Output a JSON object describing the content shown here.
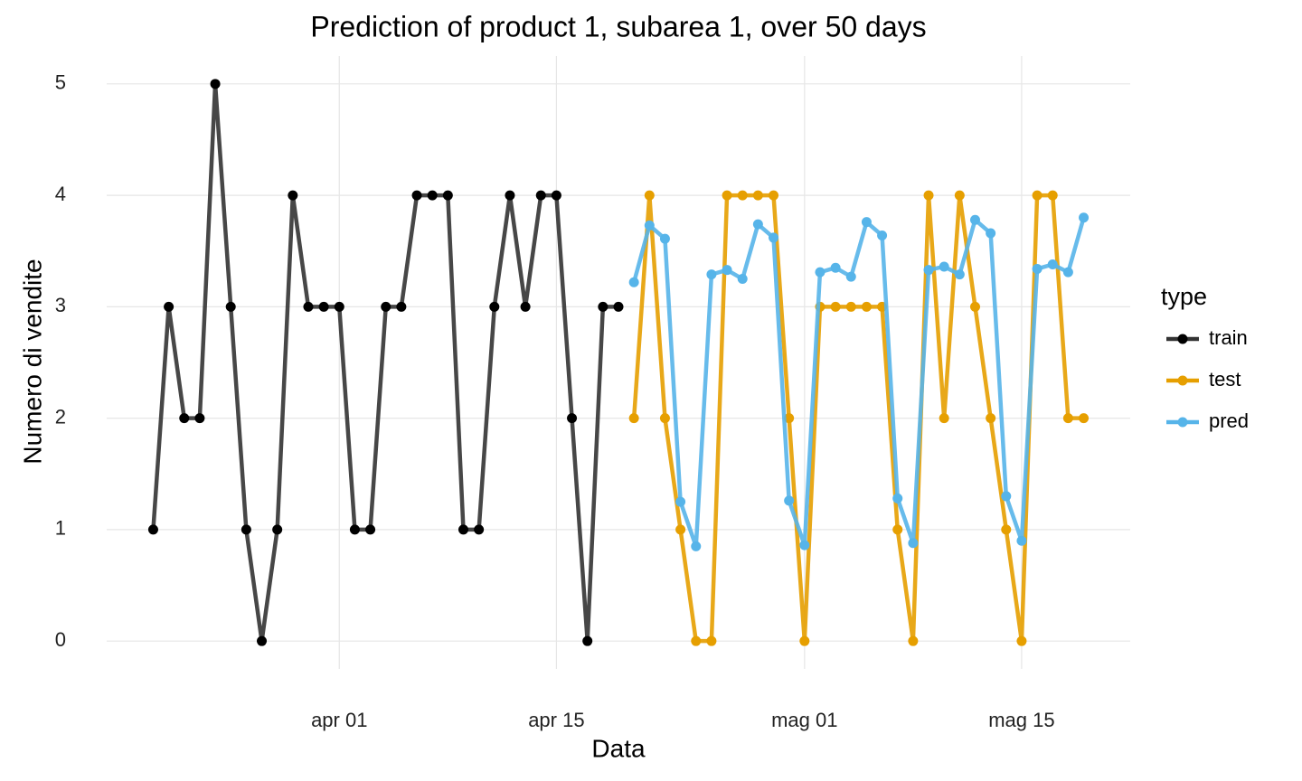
{
  "chart_data": {
    "type": "line",
    "title": "Prediction of product 1, subarea 1, over 50 days",
    "x_label": "Data",
    "y_label": "Numero di vendite",
    "legend_title": "type",
    "legend": "right",
    "grid": true,
    "xlim": [
      "03-17",
      "05-22"
    ],
    "xticks": [
      {
        "value": "04-01",
        "label": "apr 01"
      },
      {
        "value": "04-15",
        "label": "apr 15"
      },
      {
        "value": "05-01",
        "label": "mag 01"
      },
      {
        "value": "05-15",
        "label": "mag 15"
      }
    ],
    "ylim": [
      -0.25,
      5.25
    ],
    "yticks": [
      0,
      1,
      2,
      3,
      4,
      5
    ],
    "series": [
      {
        "name": "train",
        "color": "#333333",
        "x": [
          "03-20",
          "03-21",
          "03-22",
          "03-23",
          "03-24",
          "03-25",
          "03-26",
          "03-27",
          "03-28",
          "03-29",
          "03-30",
          "03-31",
          "04-01",
          "04-02",
          "04-03",
          "04-04",
          "04-05",
          "04-06",
          "04-07",
          "04-08",
          "04-09",
          "04-10",
          "04-11",
          "04-12",
          "04-13",
          "04-14",
          "04-15",
          "04-16",
          "04-17",
          "04-18",
          "04-19"
        ],
        "values": [
          1,
          3,
          2,
          2,
          5,
          3,
          1,
          0,
          1,
          4,
          3,
          3,
          3,
          1,
          1,
          3,
          3,
          4,
          4,
          4,
          1,
          1,
          3,
          4,
          3,
          4,
          4,
          2,
          0,
          3,
          3
        ]
      },
      {
        "name": "test",
        "color": "#E69F00",
        "x": [
          "04-20",
          "04-21",
          "04-22",
          "04-23",
          "04-24",
          "04-25",
          "04-26",
          "04-27",
          "04-28",
          "04-29",
          "04-30",
          "05-01",
          "05-02",
          "05-03",
          "05-04",
          "05-05",
          "05-06",
          "05-07",
          "05-08",
          "05-09",
          "05-10",
          "05-11",
          "05-12",
          "05-13",
          "05-14",
          "05-15",
          "05-16",
          "05-17",
          "05-18",
          "05-19"
        ],
        "values": [
          2,
          4,
          2,
          1,
          0,
          0,
          4,
          4,
          4,
          4,
          2,
          0,
          3,
          3,
          3,
          3,
          3,
          1,
          0,
          4,
          2,
          4,
          3,
          2,
          1,
          0,
          4,
          4,
          2,
          2
        ]
      },
      {
        "name": "pred",
        "color": "#56B4E9",
        "x": [
          "04-20",
          "04-21",
          "04-22",
          "04-23",
          "04-24",
          "04-25",
          "04-26",
          "04-27",
          "04-28",
          "04-29",
          "04-30",
          "05-01",
          "05-02",
          "05-03",
          "05-04",
          "05-05",
          "05-06",
          "05-07",
          "05-08",
          "05-09",
          "05-10",
          "05-11",
          "05-12",
          "05-13",
          "05-14",
          "05-15",
          "05-16",
          "05-17",
          "05-18",
          "05-19"
        ],
        "values": [
          3.22,
          3.73,
          3.61,
          1.25,
          0.85,
          3.29,
          3.33,
          3.25,
          3.74,
          3.62,
          1.26,
          0.86,
          3.31,
          3.35,
          3.27,
          3.76,
          3.64,
          1.28,
          0.88,
          3.33,
          3.36,
          3.29,
          3.78,
          3.66,
          1.3,
          0.9,
          3.34,
          3.38,
          3.31,
          3.8
        ]
      }
    ]
  }
}
